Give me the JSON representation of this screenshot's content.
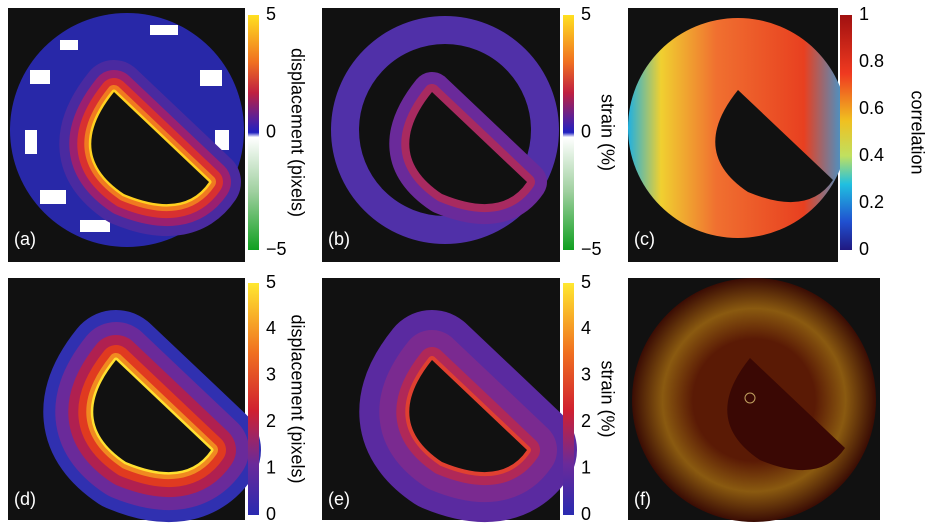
{
  "panels": [
    {
      "label": "(a)",
      "colorbar": {
        "label": "displacement (pixels)",
        "ticks": [
          "5",
          "0",
          "−5"
        ]
      }
    },
    {
      "label": "(b)",
      "colorbar": {
        "label": "strain (%)",
        "ticks": [
          "5",
          "0",
          "−5"
        ]
      }
    },
    {
      "label": "(c)",
      "colorbar": {
        "label": "correlation",
        "ticks": [
          "1",
          "0.8",
          "0.6",
          "0.4",
          "0.2",
          "0"
        ]
      }
    },
    {
      "label": "(d)",
      "colorbar": {
        "label": "displacement (pixels)",
        "ticks": [
          "5",
          "4",
          "3",
          "2",
          "1",
          "0"
        ]
      }
    },
    {
      "label": "(e)",
      "colorbar": {
        "label": "strain (%)",
        "ticks": [
          "5",
          "4",
          "3",
          "2",
          "1",
          "0"
        ]
      }
    },
    {
      "label": "(f)"
    }
  ]
}
